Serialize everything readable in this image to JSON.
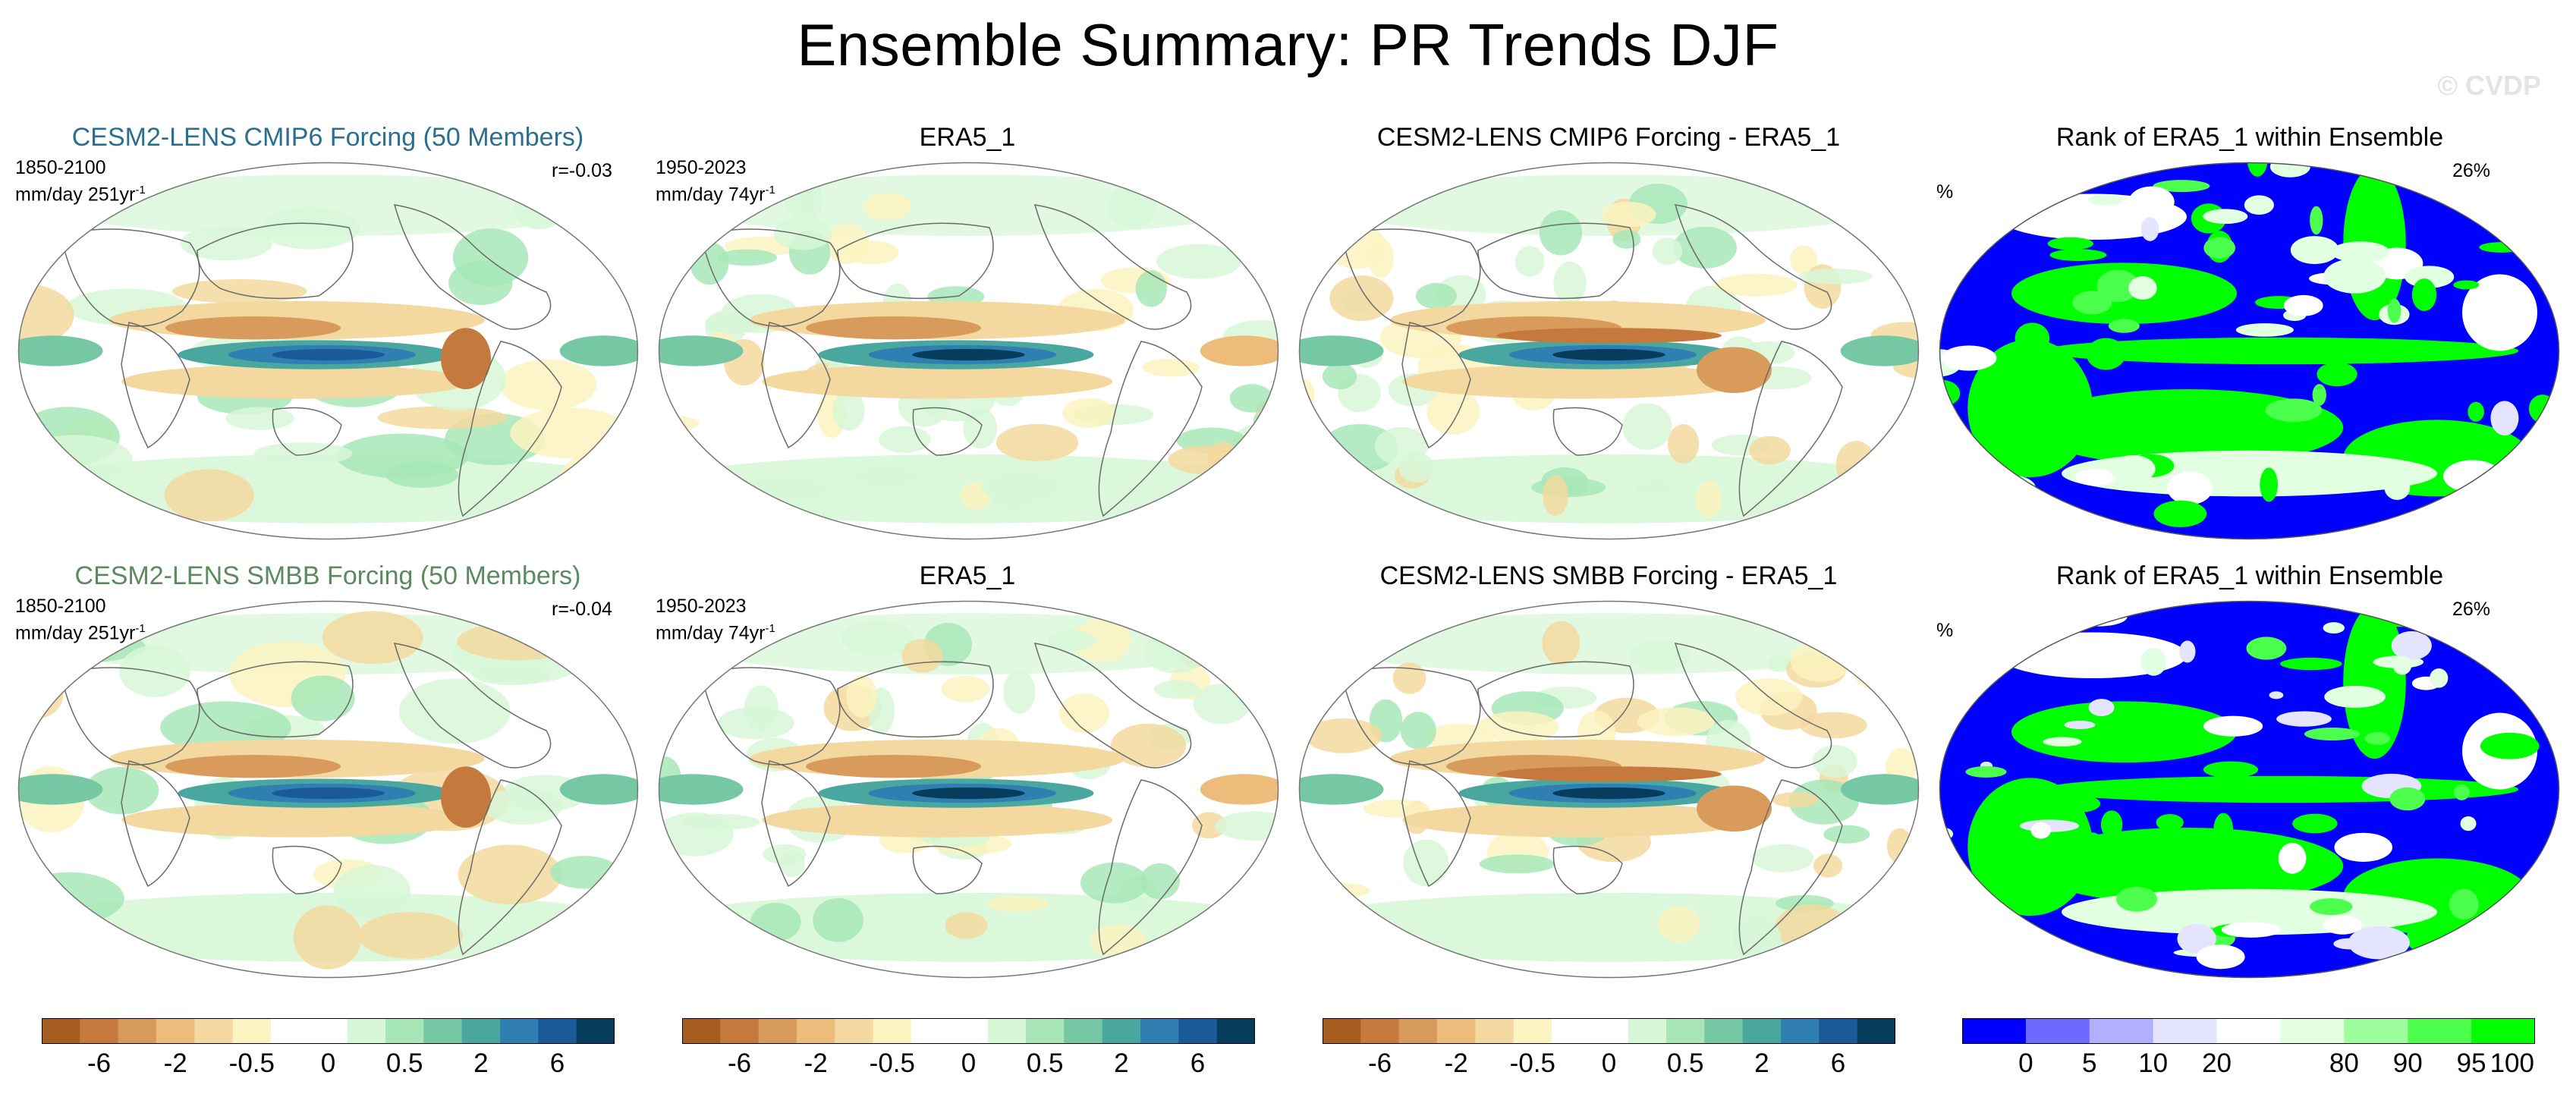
{
  "page_title": "Ensemble Summary: PR Trends DJF",
  "watermark": "© CVDP",
  "chart_data": [
    {
      "type": "heatmap",
      "title": "CESM2-LENS CMIP6 Forcing (50 Members)",
      "title_color": "#2a6f8f",
      "period": "1850-2100",
      "units": "mm/day 251yr",
      "units_exp": "-1",
      "correlation": "r=-0.03"
    },
    {
      "type": "heatmap",
      "title": "ERA5_1",
      "period": "1950-2023",
      "units": "mm/day 74yr",
      "units_exp": "-1"
    },
    {
      "type": "heatmap",
      "title": "CESM2-LENS CMIP6 Forcing - ERA5_1"
    },
    {
      "type": "heatmap",
      "title": "Rank of ERA5_1 within Ensemble",
      "unit_label": "%",
      "percent_value": "26%"
    },
    {
      "type": "heatmap",
      "title": "CESM2-LENS SMBB Forcing (50 Members)",
      "title_color": "#5c8a60",
      "period": "1850-2100",
      "units": "mm/day 251yr",
      "units_exp": "-1",
      "correlation": "r=-0.04"
    },
    {
      "type": "heatmap",
      "title": "ERA5_1",
      "period": "1950-2023",
      "units": "mm/day 74yr",
      "units_exp": "-1"
    },
    {
      "type": "heatmap",
      "title": "CESM2-LENS SMBB Forcing - ERA5_1"
    },
    {
      "type": "heatmap",
      "title": "Rank of ERA5_1 within Ensemble",
      "unit_label": "%",
      "percent_value": "26%"
    }
  ],
  "colorbars": {
    "trend": {
      "colors": [
        "#a85d20",
        "#c5793c",
        "#d99b5b",
        "#edbc7a",
        "#f3d99f",
        "#fbf3c0",
        "#ffffff",
        "#ffffff",
        "#d7f7d7",
        "#a7e7b7",
        "#76c8a4",
        "#4aa7a0",
        "#2f7fb3",
        "#1a5a98",
        "#063d5c"
      ],
      "tick_labels": [
        "-6",
        "-2",
        "-0.5",
        "0",
        "0.5",
        "2",
        "6"
      ]
    },
    "rank": {
      "colors": [
        "#0000ff",
        "#6b6bff",
        "#b0b0ff",
        "#e4e4ff",
        "#ffffff",
        "#e2ffe2",
        "#9cff9c",
        "#4cff4c",
        "#00ff00"
      ],
      "tick_labels": [
        "0",
        "5",
        "10",
        "20",
        "80",
        "90",
        "95",
        "100"
      ]
    }
  }
}
